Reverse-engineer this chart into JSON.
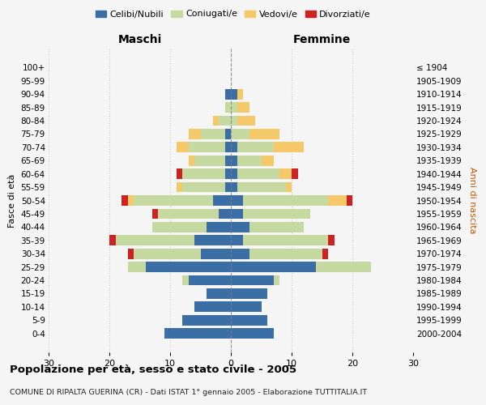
{
  "age_groups": [
    "0-4",
    "5-9",
    "10-14",
    "15-19",
    "20-24",
    "25-29",
    "30-34",
    "35-39",
    "40-44",
    "45-49",
    "50-54",
    "55-59",
    "60-64",
    "65-69",
    "70-74",
    "75-79",
    "80-84",
    "85-89",
    "90-94",
    "95-99",
    "100+"
  ],
  "birth_years": [
    "2000-2004",
    "1995-1999",
    "1990-1994",
    "1985-1989",
    "1980-1984",
    "1975-1979",
    "1970-1974",
    "1965-1969",
    "1960-1964",
    "1955-1959",
    "1950-1954",
    "1945-1949",
    "1940-1944",
    "1935-1939",
    "1930-1934",
    "1925-1929",
    "1920-1924",
    "1915-1919",
    "1910-1914",
    "1905-1909",
    "≤ 1904"
  ],
  "colors": {
    "celibi": "#3a6ea5",
    "coniugati": "#c5d9a0",
    "vedovi": "#f5c96a",
    "divorziati": "#cc2222"
  },
  "male": {
    "celibi": [
      11,
      8,
      6,
      4,
      7,
      14,
      5,
      6,
      4,
      2,
      3,
      1,
      1,
      1,
      1,
      1,
      0,
      0,
      1,
      0,
      0
    ],
    "coniugati": [
      0,
      0,
      0,
      0,
      1,
      3,
      11,
      13,
      9,
      10,
      13,
      7,
      7,
      5,
      6,
      4,
      2,
      1,
      0,
      0,
      0
    ],
    "vedovi": [
      0,
      0,
      0,
      0,
      0,
      0,
      0,
      0,
      0,
      0,
      1,
      1,
      0,
      1,
      2,
      2,
      1,
      0,
      0,
      0,
      0
    ],
    "divorziati": [
      0,
      0,
      0,
      0,
      0,
      0,
      1,
      1,
      0,
      1,
      1,
      0,
      1,
      0,
      0,
      0,
      0,
      0,
      0,
      0,
      0
    ]
  },
  "female": {
    "nubili": [
      7,
      6,
      5,
      6,
      7,
      14,
      3,
      2,
      3,
      2,
      2,
      1,
      1,
      1,
      1,
      0,
      0,
      0,
      1,
      0,
      0
    ],
    "coniugati": [
      0,
      0,
      0,
      0,
      1,
      9,
      12,
      14,
      9,
      11,
      14,
      8,
      7,
      4,
      6,
      3,
      1,
      1,
      0,
      0,
      0
    ],
    "vedovi": [
      0,
      0,
      0,
      0,
      0,
      0,
      0,
      0,
      0,
      0,
      3,
      1,
      2,
      2,
      5,
      5,
      3,
      2,
      1,
      0,
      0
    ],
    "divorziati": [
      0,
      0,
      0,
      0,
      0,
      0,
      1,
      1,
      0,
      0,
      1,
      0,
      1,
      0,
      0,
      0,
      0,
      0,
      0,
      0,
      0
    ]
  },
  "xlim": [
    -30,
    30
  ],
  "xticks": [
    -30,
    -20,
    -10,
    0,
    10,
    20,
    30
  ],
  "xticklabels": [
    "30",
    "20",
    "10",
    "0",
    "10",
    "20",
    "30"
  ],
  "title": "Popolazione per età, sesso e stato civile - 2005",
  "subtitle": "COMUNE DI RIPALTA GUERINA (CR) - Dati ISTAT 1° gennaio 2005 - Elaborazione TUTTITALIA.IT",
  "ylabel_left": "Fasce di età",
  "ylabel_right": "Anni di nascita",
  "label_maschi": "Maschi",
  "label_femmine": "Femmine",
  "legend_labels": [
    "Celibi/Nubili",
    "Coniugati/e",
    "Vedovi/e",
    "Divorziati/e"
  ],
  "bg_color": "#f5f5f5",
  "grid_color": "#cccccc"
}
